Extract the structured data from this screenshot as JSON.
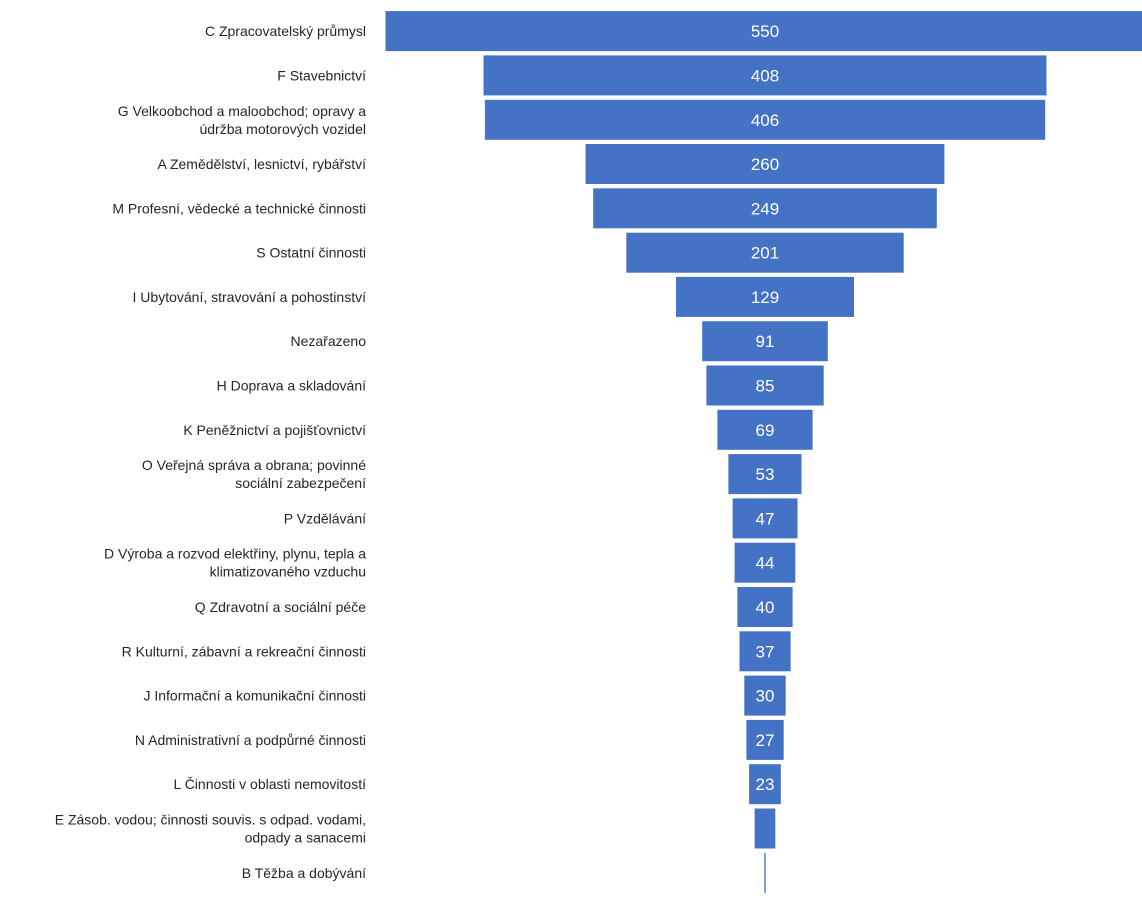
{
  "chart_data": {
    "type": "bar",
    "orientation": "horizontal-funnel",
    "title": "",
    "xlabel": "",
    "ylabel": "",
    "legend": "none",
    "grid": false,
    "bar_color": "#4472C4",
    "label_color": "#FFFFFF",
    "categories": [
      "C Zpracovatelský průmysl",
      "F Stavebnictví",
      "G Velkoobchod a maloobchod; opravy a údržba motorových vozidel",
      "A Zemědělství, lesnictví, rybářství",
      "M Profesní, vědecké a technické činnosti",
      "S Ostatní činnosti",
      "I Ubytování, stravování a pohostinství",
      "Nezařazeno",
      "H Doprava a skladování",
      "K Peněžnictví a pojišťovnictví",
      "O Veřejná správa a obrana; povinné sociální zabezpečení",
      "P Vzdělávání",
      "D Výroba a rozvod elektřiny, plynu, tepla a klimatizovaného vzduchu",
      "Q Zdravotní a sociální péče",
      "R Kulturní, zábavní a rekreační činnosti",
      "J Informační a komunikační činnosti",
      "N Administrativní a podpůrné činnosti",
      "L Činnosti v oblasti nemovitostí",
      "E Zásob. vodou; činnosti souvis. s odpad. vodami, odpady a sanacemi",
      "B Těžba a dobývání"
    ],
    "category_label_lines": [
      [
        "C Zpracovatelský průmysl"
      ],
      [
        "F Stavebnictví"
      ],
      [
        "G Velkoobchod a maloobchod; opravy a",
        "údržba motorových vozidel"
      ],
      [
        "A Zemědělství, lesnictví, rybářství"
      ],
      [
        "M Profesní, vědecké a technické činnosti"
      ],
      [
        "S Ostatní činnosti"
      ],
      [
        "I Ubytování, stravování a pohostinství"
      ],
      [
        "Nezařazeno"
      ],
      [
        "H Doprava a skladování"
      ],
      [
        "K Peněžnictví a pojišťovnictví"
      ],
      [
        "O Veřejná správa a obrana; povinné",
        "sociální zabezpečení"
      ],
      [
        "P Vzdělávání"
      ],
      [
        "D Výroba a rozvod elektřiny, plynu, tepla a",
        "klimatizovaného vzduchu"
      ],
      [
        "Q Zdravotní a sociální péče"
      ],
      [
        "R Kulturní, zábavní a rekreační činnosti"
      ],
      [
        "J Informační a komunikační činnosti"
      ],
      [
        "N Administrativní a podpůrné činnosti"
      ],
      [
        "L Činnosti v oblasti nemovitostí"
      ],
      [
        "E Zásob. vodou; činnosti souvis. s odpad. vodami,",
        "odpady a sanacemi"
      ],
      [
        "B Těžba a dobývání"
      ]
    ],
    "values": [
      550,
      408,
      406,
      260,
      249,
      201,
      129,
      91,
      85,
      69,
      53,
      47,
      44,
      40,
      37,
      30,
      27,
      23,
      15,
      1
    ],
    "data_labels": [
      "550",
      "408",
      "406",
      "260",
      "249",
      "201",
      "129",
      "91",
      "85",
      "69",
      "53",
      "47",
      "44",
      "40",
      "37",
      "30",
      "27",
      "23",
      "",
      ""
    ]
  }
}
